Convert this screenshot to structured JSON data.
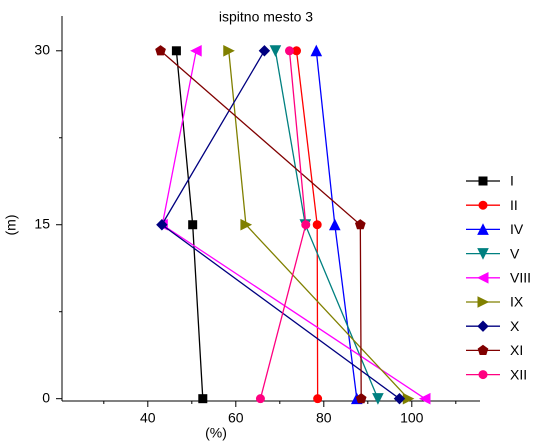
{
  "chart_data": {
    "type": "line",
    "title": "ispitno mesto 3",
    "x_label": "(%)",
    "y_label": "(m)",
    "y": [
      30,
      15,
      0
    ],
    "series": [
      {
        "name": "I",
        "color": "#000000",
        "marker": "square",
        "x": [
          46.5,
          50.2,
          52.5
        ]
      },
      {
        "name": "II",
        "color": "#ff0000",
        "marker": "circle",
        "x": [
          73.8,
          78.5,
          78.6
        ]
      },
      {
        "name": "IV",
        "color": "#0000ff",
        "marker": "triangle-up",
        "x": [
          78.3,
          82.5,
          87.5
        ]
      },
      {
        "name": "V",
        "color": "#008080",
        "marker": "triangle-down",
        "x": [
          69.0,
          75.8,
          92.3
        ]
      },
      {
        "name": "VIII",
        "color": "#ff00ff",
        "marker": "triangle-left",
        "x": [
          51.0,
          43.3,
          103.0
        ]
      },
      {
        "name": "IX",
        "color": "#808000",
        "marker": "triangle-right",
        "x": [
          58.4,
          62.3,
          99.2
        ]
      },
      {
        "name": "X",
        "color": "#000080",
        "marker": "diamond",
        "x": [
          66.5,
          43.2,
          97.2
        ]
      },
      {
        "name": "XI",
        "color": "#800000",
        "marker": "pentagon",
        "x": [
          42.9,
          88.3,
          88.5
        ]
      },
      {
        "name": "XII",
        "color": "#ff0080",
        "marker": "circle",
        "x": [
          72.2,
          75.9,
          65.6
        ]
      }
    ],
    "xlim": [
      20.5,
      115.5
    ],
    "xticks": [
      40,
      60,
      80,
      100
    ],
    "xminorticks": [
      30,
      50,
      70,
      90,
      110
    ],
    "ylim": [
      -0.2,
      33
    ],
    "yticks": [
      0,
      15,
      30
    ],
    "yminorticks": [
      7.5,
      22.5
    ],
    "legend": "right"
  }
}
